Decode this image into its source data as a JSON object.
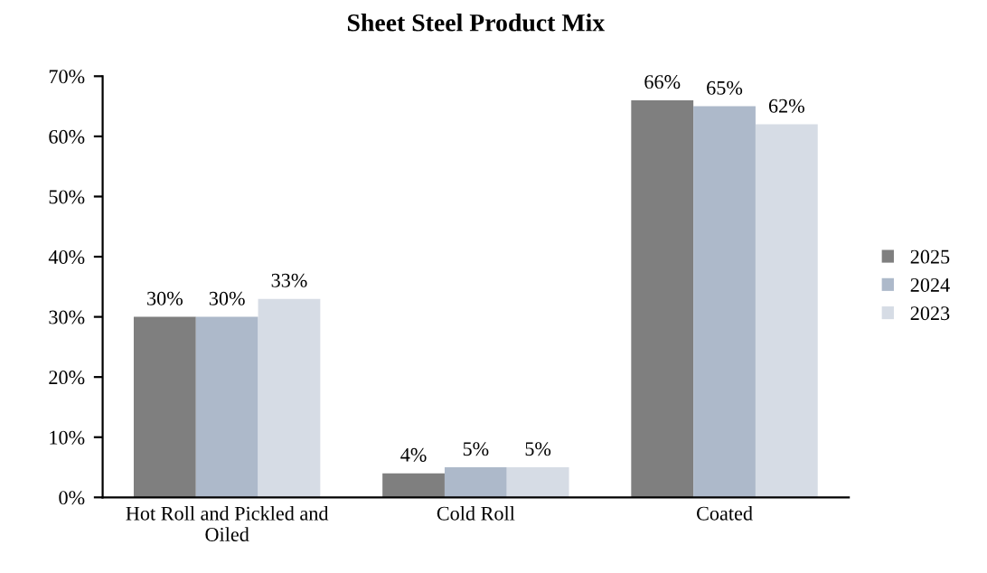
{
  "chart_data": {
    "type": "bar",
    "title": "Sheet Steel Product Mix",
    "categories": [
      "Hot Roll and Pickled and\nOiled",
      "Cold Roll",
      "Coated"
    ],
    "series": [
      {
        "name": "2025",
        "color": "#7f7f7f",
        "values": [
          30,
          4,
          66
        ],
        "value_labels": [
          "30%",
          "4%",
          "66%"
        ]
      },
      {
        "name": "2024",
        "color": "#adb9ca",
        "values": [
          30,
          5,
          65
        ],
        "value_labels": [
          "30%",
          "5%",
          "65%"
        ]
      },
      {
        "name": "2023",
        "color": "#d6dce5",
        "values": [
          33,
          5,
          62
        ],
        "value_labels": [
          "33%",
          "5%",
          "62%"
        ]
      }
    ],
    "ylim": [
      0,
      70
    ],
    "yticks": [
      {
        "value": 0,
        "label": "0%"
      },
      {
        "value": 10,
        "label": "10%"
      },
      {
        "value": 20,
        "label": "20%"
      },
      {
        "value": 30,
        "label": "30%"
      },
      {
        "value": 40,
        "label": "40%"
      },
      {
        "value": 50,
        "label": "50%"
      },
      {
        "value": 60,
        "label": "60%"
      },
      {
        "value": 70,
        "label": "70%"
      }
    ],
    "grid": false,
    "legend": "right"
  }
}
